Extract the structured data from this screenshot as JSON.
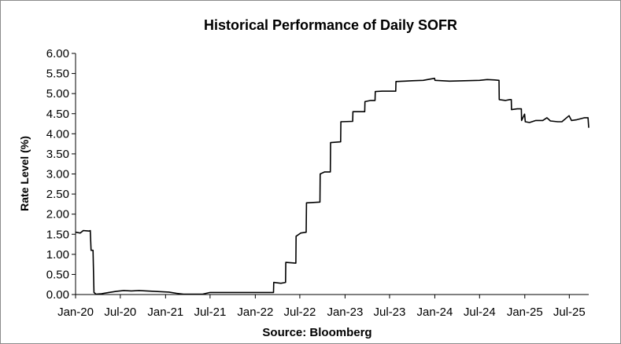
{
  "chart_data": {
    "type": "line",
    "title": "Historical Performance of Daily SOFR",
    "ylabel": "Rate Level (%)",
    "xlabel": "Source: Bloomberg",
    "ylim": [
      0,
      6
    ],
    "yticks": [
      "0.00",
      "0.50",
      "1.00",
      "1.50",
      "2.00",
      "2.50",
      "3.00",
      "3.50",
      "4.00",
      "4.50",
      "5.00",
      "5.50",
      "6.00"
    ],
    "xticks": [
      "Jan-20",
      "Jul-20",
      "Jan-21",
      "Jul-21",
      "Jan-22",
      "Jul-22",
      "Jan-23",
      "Jul-23",
      "Jan-24",
      "Jul-24",
      "Jan-25",
      "Jul-25"
    ],
    "grid": false,
    "legend": "none",
    "line_color": "#000000",
    "series": [
      {
        "values": [
          [
            "2020-01-02",
            1.55
          ],
          [
            "2020-01-20",
            1.53
          ],
          [
            "2020-02-01",
            1.59
          ],
          [
            "2020-02-25",
            1.58
          ],
          [
            "2020-03-01",
            1.59
          ],
          [
            "2020-03-04",
            1.1
          ],
          [
            "2020-03-12",
            1.1
          ],
          [
            "2020-03-16",
            0.05
          ],
          [
            "2020-03-24",
            0.01
          ],
          [
            "2020-04-15",
            0.02
          ],
          [
            "2020-05-15",
            0.05
          ],
          [
            "2020-06-15",
            0.08
          ],
          [
            "2020-07-15",
            0.1
          ],
          [
            "2020-08-15",
            0.09
          ],
          [
            "2020-09-15",
            0.1
          ],
          [
            "2020-10-15",
            0.09
          ],
          [
            "2020-11-15",
            0.08
          ],
          [
            "2020-12-15",
            0.07
          ],
          [
            "2021-01-15",
            0.06
          ],
          [
            "2021-02-15",
            0.03
          ],
          [
            "2021-03-15",
            0.01
          ],
          [
            "2021-04-15",
            0.01
          ],
          [
            "2021-06-01",
            0.01
          ],
          [
            "2021-07-01",
            0.05
          ],
          [
            "2021-09-01",
            0.05
          ],
          [
            "2021-12-01",
            0.05
          ],
          [
            "2022-03-16",
            0.05
          ],
          [
            "2022-03-17",
            0.3
          ],
          [
            "2022-04-15",
            0.28
          ],
          [
            "2022-05-04",
            0.3
          ],
          [
            "2022-05-05",
            0.8
          ],
          [
            "2022-06-15",
            0.78
          ],
          [
            "2022-06-16",
            1.45
          ],
          [
            "2022-07-05",
            1.53
          ],
          [
            "2022-07-27",
            1.55
          ],
          [
            "2022-07-28",
            2.28
          ],
          [
            "2022-09-21",
            2.3
          ],
          [
            "2022-09-22",
            3.0
          ],
          [
            "2022-10-10",
            3.05
          ],
          [
            "2022-11-02",
            3.05
          ],
          [
            "2022-11-03",
            3.78
          ],
          [
            "2022-12-14",
            3.8
          ],
          [
            "2022-12-15",
            4.3
          ],
          [
            "2023-02-01",
            4.31
          ],
          [
            "2023-02-02",
            4.55
          ],
          [
            "2023-03-22",
            4.55
          ],
          [
            "2023-03-23",
            4.8
          ],
          [
            "2023-04-15",
            4.83
          ],
          [
            "2023-05-03",
            4.83
          ],
          [
            "2023-05-04",
            5.05
          ],
          [
            "2023-06-01",
            5.06
          ],
          [
            "2023-07-26",
            5.06
          ],
          [
            "2023-07-27",
            5.3
          ],
          [
            "2023-09-01",
            5.31
          ],
          [
            "2023-10-01",
            5.32
          ],
          [
            "2023-11-15",
            5.33
          ],
          [
            "2023-12-31",
            5.38
          ],
          [
            "2024-01-02",
            5.33
          ],
          [
            "2024-03-01",
            5.31
          ],
          [
            "2024-05-01",
            5.32
          ],
          [
            "2024-07-01",
            5.33
          ],
          [
            "2024-08-01",
            5.35
          ],
          [
            "2024-09-01",
            5.34
          ],
          [
            "2024-09-18",
            5.33
          ],
          [
            "2024-09-19",
            4.85
          ],
          [
            "2024-10-15",
            4.83
          ],
          [
            "2024-11-01",
            4.85
          ],
          [
            "2024-11-07",
            4.85
          ],
          [
            "2024-11-08",
            4.6
          ],
          [
            "2024-12-01",
            4.62
          ],
          [
            "2024-12-18",
            4.62
          ],
          [
            "2024-12-19",
            4.33
          ],
          [
            "2024-12-31",
            4.49
          ],
          [
            "2025-01-03",
            4.3
          ],
          [
            "2025-01-20",
            4.28
          ],
          [
            "2025-02-15",
            4.33
          ],
          [
            "2025-03-15",
            4.33
          ],
          [
            "2025-04-01",
            4.4
          ],
          [
            "2025-04-15",
            4.32
          ],
          [
            "2025-05-15",
            4.3
          ],
          [
            "2025-06-01",
            4.3
          ],
          [
            "2025-06-30",
            4.45
          ],
          [
            "2025-07-10",
            4.33
          ],
          [
            "2025-08-01",
            4.35
          ],
          [
            "2025-09-01",
            4.4
          ],
          [
            "2025-09-15",
            4.4
          ],
          [
            "2025-09-18",
            4.15
          ]
        ]
      }
    ]
  }
}
